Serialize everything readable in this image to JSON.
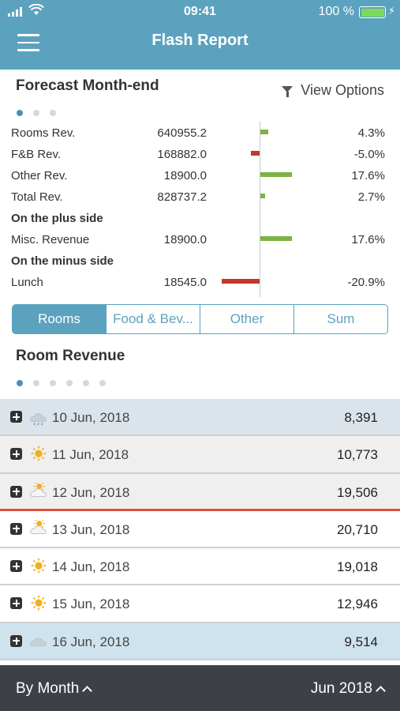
{
  "status_bar": {
    "time": "09:41",
    "battery": "100 %"
  },
  "header": {
    "title": "Flash Report"
  },
  "forecast": {
    "title": "Forecast Month-end",
    "view_options": "View Options",
    "rows": [
      {
        "label": "Rooms Rev.",
        "value": "640955.2",
        "pct": "4.3%",
        "change": 4.3
      },
      {
        "label": "F&B Rev.",
        "value": "168882.0",
        "pct": "-5.0%",
        "change": -5.0
      },
      {
        "label": "Other Rev.",
        "value": "18900.0",
        "pct": "17.6%",
        "change": 17.6
      },
      {
        "label": "Total Rev.",
        "value": "828737.2",
        "pct": "2.7%",
        "change": 2.7
      },
      {
        "section": "On the plus side"
      },
      {
        "label": "Misc. Revenue",
        "value": "18900.0",
        "pct": "17.6%",
        "change": 17.6
      },
      {
        "section": "On the minus side"
      },
      {
        "label": "Lunch",
        "value": "18545.0",
        "pct": "-20.9%",
        "change": -20.9
      }
    ]
  },
  "tabs": [
    "Rooms",
    "Food & Bev...",
    "Other",
    "Sum"
  ],
  "room_revenue": {
    "title": "Room Revenue",
    "rows": [
      {
        "date": "10 Jun, 2018",
        "amount": "8,391",
        "weather": "rain-cloud-icon"
      },
      {
        "date": "11 Jun, 2018",
        "amount": "10,773",
        "weather": "sun-icon"
      },
      {
        "date": "12 Jun, 2018",
        "amount": "19,506",
        "weather": "partly-cloudy-icon"
      },
      {
        "date": "13 Jun, 2018",
        "amount": "20,710",
        "weather": "partly-cloudy-icon"
      },
      {
        "date": "14 Jun, 2018",
        "amount": "19,018",
        "weather": "sun-icon"
      },
      {
        "date": "15 Jun, 2018",
        "amount": "12,946",
        "weather": "sun-icon"
      },
      {
        "date": "16 Jun, 2018",
        "amount": "9,514",
        "weather": "cloud-icon"
      }
    ]
  },
  "bottom_bar": {
    "period_selector": "By Month",
    "month_selector": "Jun 2018"
  },
  "colors": {
    "brand": "#5ba2bf",
    "positive": "#7cb342",
    "negative": "#c0392b",
    "current_day_marker": "#d9533a"
  }
}
